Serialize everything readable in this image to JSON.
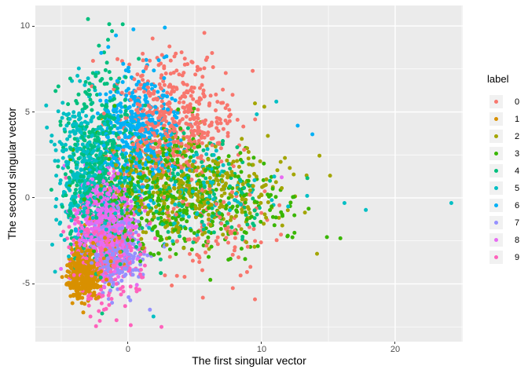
{
  "figure": {
    "background": "#FFFFFF",
    "panel_bg": "#EBEBEB",
    "grid_color": "#FFFFFF",
    "tick_color": "#333333",
    "tick_label_color": "#4D4D4D",
    "axis_title_color": "#000000"
  },
  "chart_data": {
    "type": "scatter",
    "title": "",
    "xlabel": "The first singular vector",
    "ylabel": "The second singular vector",
    "xlim": [
      -6.94,
      25.06
    ],
    "ylim": [
      -8.36,
      11.19
    ],
    "grid": true,
    "x_ticks": [
      {
        "value": 0,
        "label": "0"
      },
      {
        "value": 10,
        "label": "10"
      },
      {
        "value": 20,
        "label": "20"
      }
    ],
    "y_ticks": [
      {
        "value": 10,
        "label": "10"
      },
      {
        "value": 5,
        "label": "5"
      },
      {
        "value": 0,
        "label": "0"
      },
      {
        "value": -5,
        "label": "-5"
      }
    ],
    "x_minor_gridlines": [
      -5,
      5,
      15,
      25
    ],
    "y_minor_gridlines": [
      7.5,
      2.5,
      -2.5,
      -7.5
    ],
    "point_radius_px": 2.5,
    "seed": 42,
    "representation": "dense overplotted scatter approximated by per-label gaussian clusters",
    "legend": {
      "title": "label",
      "position": "right",
      "items": [
        {
          "label": "0",
          "color": "#F8766D"
        },
        {
          "label": "1",
          "color": "#D89000"
        },
        {
          "label": "2",
          "color": "#A3A500"
        },
        {
          "label": "3",
          "color": "#39B600"
        },
        {
          "label": "4",
          "color": "#00BF7D"
        },
        {
          "label": "5",
          "color": "#00BFC4"
        },
        {
          "label": "6",
          "color": "#00B0F6"
        },
        {
          "label": "7",
          "color": "#9590FF"
        },
        {
          "label": "8",
          "color": "#E76BF3"
        },
        {
          "label": "9",
          "color": "#FF62BC"
        }
      ]
    },
    "series": [
      {
        "label": "0",
        "color": "#F8766D",
        "clusters": [
          {
            "n": 520,
            "cx": 3.1,
            "cy": 4.4,
            "sx": 2.3,
            "sy": 1.8
          },
          {
            "n": 90,
            "cx": 6.3,
            "cy": -1.8,
            "sx": 2.3,
            "sy": 1.5
          }
        ]
      },
      {
        "label": "1",
        "color": "#D89000",
        "clusters": [
          {
            "n": 480,
            "cx": -3.3,
            "cy": -4.4,
            "sx": 0.55,
            "sy": 0.72
          },
          {
            "n": 70,
            "cx": -2.3,
            "cy": -3.4,
            "sx": 1.1,
            "sy": 1.0
          }
        ]
      },
      {
        "label": "2",
        "color": "#A3A500",
        "clusters": [
          {
            "n": 330,
            "cx": 3.6,
            "cy": 0.6,
            "sx": 2.7,
            "sy": 1.5
          },
          {
            "n": 70,
            "cx": 9.0,
            "cy": 0.4,
            "sx": 2.4,
            "sy": 1.3
          }
        ]
      },
      {
        "label": "3",
        "color": "#39B600",
        "clusters": [
          {
            "n": 380,
            "cx": 2.8,
            "cy": 0.3,
            "sx": 2.8,
            "sy": 1.7
          },
          {
            "n": 80,
            "cx": 8.5,
            "cy": -0.6,
            "sx": 2.6,
            "sy": 1.3
          }
        ]
      },
      {
        "label": "4",
        "color": "#00BF7D",
        "clusters": [
          {
            "n": 480,
            "cx": -2.2,
            "cy": 1.9,
            "sx": 1.4,
            "sy": 2.7
          },
          {
            "n": 140,
            "cx": 5.0,
            "cy": -0.1,
            "sx": 3.0,
            "sy": 1.6
          }
        ]
      },
      {
        "label": "5",
        "color": "#00BFC4",
        "clusters": [
          {
            "n": 360,
            "cx": -3.4,
            "cy": 1.6,
            "sx": 1.1,
            "sy": 2.2
          },
          {
            "n": 110,
            "cx": 4.5,
            "cy": 0.6,
            "sx": 3.2,
            "sy": 1.6
          }
        ]
      },
      {
        "label": "6",
        "color": "#00B0F6",
        "clusters": [
          {
            "n": 440,
            "cx": 0.6,
            "cy": 3.9,
            "sx": 1.5,
            "sy": 1.8
          }
        ]
      },
      {
        "label": "7",
        "color": "#9590FF",
        "clusters": [
          {
            "n": 340,
            "cx": -1.0,
            "cy": -3.0,
            "sx": 1.1,
            "sy": 1.2
          }
        ]
      },
      {
        "label": "8",
        "color": "#E76BF3",
        "clusters": [
          {
            "n": 400,
            "cx": -1.6,
            "cy": -1.3,
            "sx": 1.1,
            "sy": 1.3
          }
        ]
      },
      {
        "label": "9",
        "color": "#FF62BC",
        "clusters": [
          {
            "n": 410,
            "cx": -1.6,
            "cy": -2.8,
            "sx": 1.3,
            "sy": 1.7
          }
        ]
      }
    ],
    "extra_points": [
      {
        "label": "4",
        "x": -3.0,
        "y": 10.4
      },
      {
        "label": "4",
        "x": -0.4,
        "y": 10.1
      },
      {
        "label": "6",
        "x": 0.4,
        "y": 9.8
      },
      {
        "label": "4",
        "x": -1.2,
        "y": 9.7
      },
      {
        "label": "4",
        "x": -1.5,
        "y": 9.2
      },
      {
        "label": "9",
        "x": 2.5,
        "y": -7.5
      },
      {
        "label": "5",
        "x": 1.9,
        "y": -6.9
      },
      {
        "label": "9",
        "x": 0.2,
        "y": -7.4
      },
      {
        "label": "9",
        "x": -1.8,
        "y": -6.5
      },
      {
        "label": "5",
        "x": 24.2,
        "y": -0.3
      },
      {
        "label": "5",
        "x": 16.2,
        "y": -0.3
      },
      {
        "label": "5",
        "x": 17.8,
        "y": -0.7
      },
      {
        "label": "6",
        "x": 12.7,
        "y": 4.2
      },
      {
        "label": "6",
        "x": 13.8,
        "y": 3.7
      },
      {
        "label": "5",
        "x": 11.1,
        "y": 5.6
      },
      {
        "label": "2",
        "x": 9.5,
        "y": 5.5
      },
      {
        "label": "2",
        "x": 10.2,
        "y": 5.3
      },
      {
        "label": "0",
        "x": 9.5,
        "y": -5.9
      },
      {
        "label": "0",
        "x": 5.6,
        "y": -5.8
      },
      {
        "label": "8",
        "x": 11.5,
        "y": 1.2
      }
    ]
  }
}
